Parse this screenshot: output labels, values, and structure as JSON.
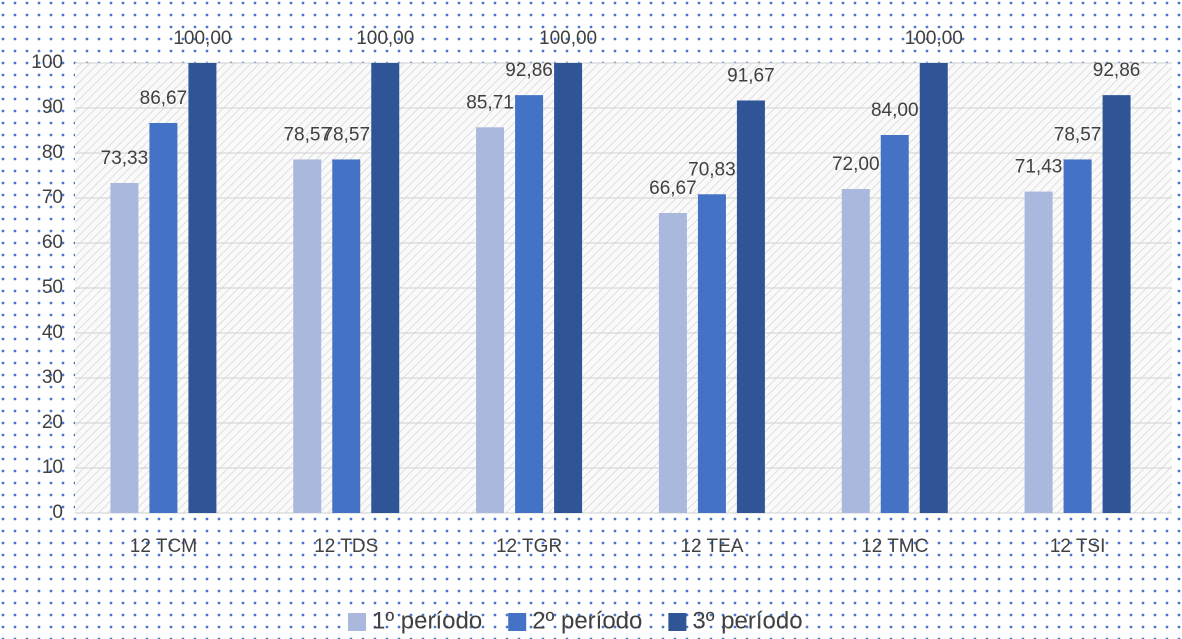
{
  "chart_data": {
    "type": "bar",
    "categories": [
      "12 TCM",
      "12 TDS",
      "12 TGR",
      "12 TEA",
      "12 TMC",
      "12 TSI"
    ],
    "series": [
      {
        "name": "1º período",
        "color": "#a9b8dc",
        "values": [
          73.33,
          78.57,
          85.71,
          66.67,
          72.0,
          71.43
        ],
        "value_labels": [
          "73,33",
          "78,57",
          "85,71",
          "66,67",
          "72,00",
          "71,43"
        ]
      },
      {
        "name": "2º período",
        "color": "#4472c4",
        "values": [
          86.67,
          78.57,
          92.86,
          70.83,
          84.0,
          78.57
        ],
        "value_labels": [
          "86,67",
          "78,57",
          "92,86",
          "70,83",
          "84,00",
          "78,57"
        ]
      },
      {
        "name": "3º período",
        "color": "#2f5597",
        "values": [
          100.0,
          100.0,
          100.0,
          91.67,
          100.0,
          92.86
        ],
        "value_labels": [
          "100,00",
          "100,00",
          "100,00",
          "91,67",
          "100,00",
          "92,86"
        ]
      }
    ],
    "ylim": [
      0,
      100
    ],
    "yticks": [
      0,
      10,
      20,
      30,
      40,
      50,
      60,
      70,
      80,
      90,
      100
    ],
    "grid": true,
    "legend": "bottom"
  }
}
